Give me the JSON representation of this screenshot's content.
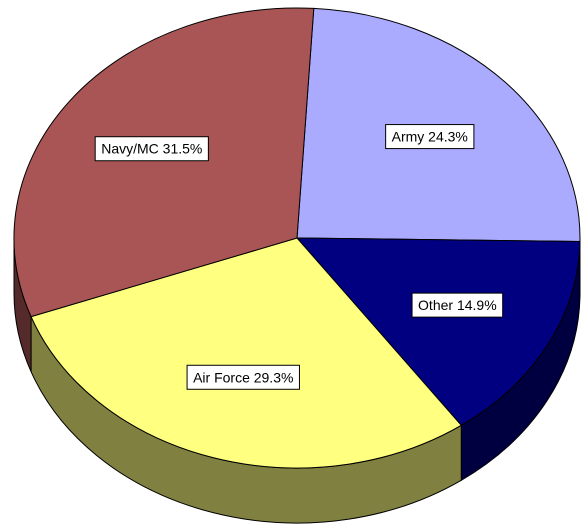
{
  "chart_data": {
    "type": "pie",
    "values": [
      24.3,
      14.9,
      29.3,
      31.5
    ],
    "value_labels": [
      "Army 24.3%",
      "Other 14.9%",
      "Air Force 29.3%",
      "Navy/MC 31.5%"
    ],
    "colors": [
      "#aaaaff",
      "#000080",
      "#ffff80",
      "#aa5555"
    ],
    "side_colors": [
      "#55557f",
      "#000040",
      "#808040",
      "#552a2a"
    ]
  }
}
